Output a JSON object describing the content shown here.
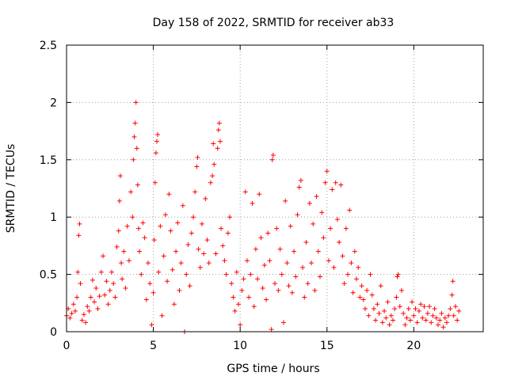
{
  "chart_data": {
    "type": "scatter",
    "title": "Day 158 of 2022, SRMTID for receiver ab33",
    "xlabel": "GPS time / hours",
    "ylabel": "SRMTID / TECUs",
    "xlim": [
      0,
      24
    ],
    "ylim": [
      0,
      2.5
    ],
    "xticks": [
      0,
      5,
      10,
      15,
      20
    ],
    "xtick_labels": [
      "0",
      "5",
      "10",
      "15",
      "20"
    ],
    "yticks": [
      0,
      0.5,
      1,
      1.5,
      2,
      2.5
    ],
    "ytick_labels": [
      "0",
      "0.5",
      "1",
      "1.5",
      "2",
      "2.5"
    ],
    "grid": true,
    "marker": "plus",
    "series": [
      {
        "name": "SRMTID",
        "color": "#ff0000",
        "points": [
          [
            0.0,
            0.14
          ],
          [
            0.1,
            0.2
          ],
          [
            0.2,
            0.12
          ],
          [
            0.3,
            0.16
          ],
          [
            0.4,
            0.24
          ],
          [
            0.5,
            0.18
          ],
          [
            0.6,
            0.3
          ],
          [
            0.65,
            0.52
          ],
          [
            0.7,
            0.84
          ],
          [
            0.75,
            0.94
          ],
          [
            0.8,
            0.42
          ],
          [
            0.9,
            0.1
          ],
          [
            1.0,
            0.15
          ],
          [
            1.1,
            0.08
          ],
          [
            1.2,
            0.22
          ],
          [
            1.3,
            0.18
          ],
          [
            1.4,
            0.3
          ],
          [
            1.5,
            0.45
          ],
          [
            1.6,
            0.26
          ],
          [
            1.7,
            0.38
          ],
          [
            1.8,
            0.2
          ],
          [
            1.9,
            0.31
          ],
          [
            2.0,
            0.52
          ],
          [
            2.1,
            0.66
          ],
          [
            2.2,
            0.32
          ],
          [
            2.3,
            0.44
          ],
          [
            2.4,
            0.24
          ],
          [
            2.5,
            0.36
          ],
          [
            2.6,
            0.52
          ],
          [
            2.7,
            0.42
          ],
          [
            2.8,
            0.3
          ],
          [
            2.9,
            0.74
          ],
          [
            3.0,
            0.88
          ],
          [
            3.05,
            1.14
          ],
          [
            3.1,
            1.36
          ],
          [
            3.15,
            0.6
          ],
          [
            3.2,
            0.46
          ],
          [
            3.3,
            0.7
          ],
          [
            3.4,
            0.38
          ],
          [
            3.5,
            0.92
          ],
          [
            3.6,
            0.62
          ],
          [
            3.7,
            1.22
          ],
          [
            3.8,
            1.0
          ],
          [
            3.85,
            1.5
          ],
          [
            3.9,
            1.7
          ],
          [
            3.95,
            1.82
          ],
          [
            4.0,
            2.0
          ],
          [
            4.05,
            1.6
          ],
          [
            4.1,
            1.28
          ],
          [
            4.15,
            0.9
          ],
          [
            4.2,
            0.7
          ],
          [
            4.3,
            0.5
          ],
          [
            4.4,
            0.95
          ],
          [
            4.5,
            0.82
          ],
          [
            4.6,
            0.28
          ],
          [
            4.7,
            0.6
          ],
          [
            4.8,
            0.42
          ],
          [
            4.9,
            0.06
          ],
          [
            5.0,
            0.34
          ],
          [
            5.05,
            0.8
          ],
          [
            5.1,
            1.3
          ],
          [
            5.15,
            1.56
          ],
          [
            5.2,
            1.66
          ],
          [
            5.25,
            1.72
          ],
          [
            5.3,
            0.52
          ],
          [
            5.4,
            0.92
          ],
          [
            5.5,
            0.14
          ],
          [
            5.6,
            0.66
          ],
          [
            5.7,
            1.02
          ],
          [
            5.8,
            0.44
          ],
          [
            5.9,
            1.2
          ],
          [
            6.0,
            0.88
          ],
          [
            6.1,
            0.54
          ],
          [
            6.2,
            0.24
          ],
          [
            6.3,
            0.7
          ],
          [
            6.4,
            0.95
          ],
          [
            6.5,
            0.36
          ],
          [
            6.6,
            0.6
          ],
          [
            6.7,
            1.1
          ],
          [
            6.8,
            0.0
          ],
          [
            6.9,
            0.5
          ],
          [
            7.0,
            0.76
          ],
          [
            7.1,
            0.4
          ],
          [
            7.2,
            0.86
          ],
          [
            7.3,
            1.0
          ],
          [
            7.4,
            1.22
          ],
          [
            7.5,
            1.44
          ],
          [
            7.55,
            1.52
          ],
          [
            7.6,
            0.72
          ],
          [
            7.7,
            0.56
          ],
          [
            7.8,
            0.94
          ],
          [
            7.9,
            0.68
          ],
          [
            8.0,
            1.16
          ],
          [
            8.1,
            0.8
          ],
          [
            8.2,
            0.6
          ],
          [
            8.3,
            1.3
          ],
          [
            8.4,
            1.36
          ],
          [
            8.45,
            1.64
          ],
          [
            8.5,
            1.46
          ],
          [
            8.6,
            0.68
          ],
          [
            8.7,
            1.6
          ],
          [
            8.75,
            1.76
          ],
          [
            8.8,
            1.82
          ],
          [
            8.85,
            1.66
          ],
          [
            8.9,
            0.9
          ],
          [
            9.0,
            0.75
          ],
          [
            9.1,
            0.62
          ],
          [
            9.2,
            0.5
          ],
          [
            9.3,
            0.86
          ],
          [
            9.4,
            1.0
          ],
          [
            9.5,
            0.42
          ],
          [
            9.6,
            0.3
          ],
          [
            9.7,
            0.18
          ],
          [
            9.8,
            0.52
          ],
          [
            9.9,
            0.24
          ],
          [
            10.0,
            0.06
          ],
          [
            10.1,
            0.36
          ],
          [
            10.2,
            0.46
          ],
          [
            10.3,
            1.22
          ],
          [
            10.4,
            0.62
          ],
          [
            10.5,
            0.3
          ],
          [
            10.6,
            0.5
          ],
          [
            10.7,
            1.12
          ],
          [
            10.8,
            0.22
          ],
          [
            10.9,
            0.72
          ],
          [
            11.0,
            0.46
          ],
          [
            11.1,
            1.2
          ],
          [
            11.2,
            0.82
          ],
          [
            11.3,
            0.38
          ],
          [
            11.4,
            0.58
          ],
          [
            11.5,
            0.28
          ],
          [
            11.6,
            0.86
          ],
          [
            11.7,
            0.62
          ],
          [
            11.8,
            0.02
          ],
          [
            11.85,
            1.5
          ],
          [
            11.9,
            1.54
          ],
          [
            12.0,
            0.42
          ],
          [
            12.1,
            0.9
          ],
          [
            12.2,
            0.36
          ],
          [
            12.3,
            0.72
          ],
          [
            12.4,
            0.5
          ],
          [
            12.5,
            0.08
          ],
          [
            12.6,
            1.14
          ],
          [
            12.7,
            0.6
          ],
          [
            12.8,
            0.4
          ],
          [
            12.9,
            0.92
          ],
          [
            13.0,
            0.34
          ],
          [
            13.1,
            0.7
          ],
          [
            13.2,
            0.48
          ],
          [
            13.3,
            1.02
          ],
          [
            13.4,
            1.26
          ],
          [
            13.5,
            1.32
          ],
          [
            13.6,
            0.56
          ],
          [
            13.7,
            0.3
          ],
          [
            13.8,
            0.78
          ],
          [
            13.9,
            0.42
          ],
          [
            14.0,
            1.12
          ],
          [
            14.1,
            0.6
          ],
          [
            14.2,
            0.94
          ],
          [
            14.3,
            0.36
          ],
          [
            14.4,
            1.18
          ],
          [
            14.5,
            0.7
          ],
          [
            14.6,
            0.48
          ],
          [
            14.7,
            1.04
          ],
          [
            14.8,
            0.82
          ],
          [
            14.9,
            1.3
          ],
          [
            15.0,
            1.4
          ],
          [
            15.1,
            0.62
          ],
          [
            15.2,
            0.9
          ],
          [
            15.3,
            1.24
          ],
          [
            15.4,
            0.56
          ],
          [
            15.5,
            1.3
          ],
          [
            15.6,
            0.98
          ],
          [
            15.7,
            0.78
          ],
          [
            15.8,
            1.28
          ],
          [
            15.9,
            0.66
          ],
          [
            16.0,
            0.42
          ],
          [
            16.1,
            0.9
          ],
          [
            16.2,
            0.5
          ],
          [
            16.3,
            1.06
          ],
          [
            16.4,
            0.6
          ],
          [
            16.5,
            0.34
          ],
          [
            16.6,
            0.7
          ],
          [
            16.7,
            0.46
          ],
          [
            16.8,
            0.56
          ],
          [
            16.9,
            0.3
          ],
          [
            17.0,
            0.4
          ],
          [
            17.1,
            0.28
          ],
          [
            17.2,
            0.2
          ],
          [
            17.3,
            0.36
          ],
          [
            17.4,
            0.14
          ],
          [
            17.5,
            0.5
          ],
          [
            17.6,
            0.32
          ],
          [
            17.7,
            0.2
          ],
          [
            17.8,
            0.1
          ],
          [
            17.9,
            0.24
          ],
          [
            18.0,
            0.16
          ],
          [
            18.1,
            0.4
          ],
          [
            18.2,
            0.08
          ],
          [
            18.3,
            0.18
          ],
          [
            18.4,
            0.12
          ],
          [
            18.5,
            0.26
          ],
          [
            18.6,
            0.06
          ],
          [
            18.7,
            0.14
          ],
          [
            18.8,
            0.1
          ],
          [
            18.9,
            0.2
          ],
          [
            19.0,
            0.3
          ],
          [
            19.05,
            0.48
          ],
          [
            19.1,
            0.5
          ],
          [
            19.2,
            0.22
          ],
          [
            19.3,
            0.36
          ],
          [
            19.4,
            0.16
          ],
          [
            19.5,
            0.06
          ],
          [
            19.6,
            0.12
          ],
          [
            19.7,
            0.2
          ],
          [
            19.8,
            0.1
          ],
          [
            19.9,
            0.26
          ],
          [
            20.0,
            0.14
          ],
          [
            20.1,
            0.2
          ],
          [
            20.2,
            0.08
          ],
          [
            20.3,
            0.18
          ],
          [
            20.4,
            0.24
          ],
          [
            20.5,
            0.12
          ],
          [
            20.6,
            0.22
          ],
          [
            20.7,
            0.1
          ],
          [
            20.8,
            0.16
          ],
          [
            20.9,
            0.22
          ],
          [
            21.0,
            0.08
          ],
          [
            21.1,
            0.14
          ],
          [
            21.2,
            0.2
          ],
          [
            21.3,
            0.12
          ],
          [
            21.4,
            0.06
          ],
          [
            21.5,
            0.1
          ],
          [
            21.6,
            0.16
          ],
          [
            21.7,
            0.04
          ],
          [
            21.8,
            0.12
          ],
          [
            21.9,
            0.08
          ],
          [
            22.0,
            0.14
          ],
          [
            22.1,
            0.2
          ],
          [
            22.2,
            0.32
          ],
          [
            22.25,
            0.44
          ],
          [
            22.3,
            0.14
          ],
          [
            22.4,
            0.22
          ],
          [
            22.5,
            0.1
          ],
          [
            22.6,
            0.18
          ]
        ]
      }
    ]
  }
}
